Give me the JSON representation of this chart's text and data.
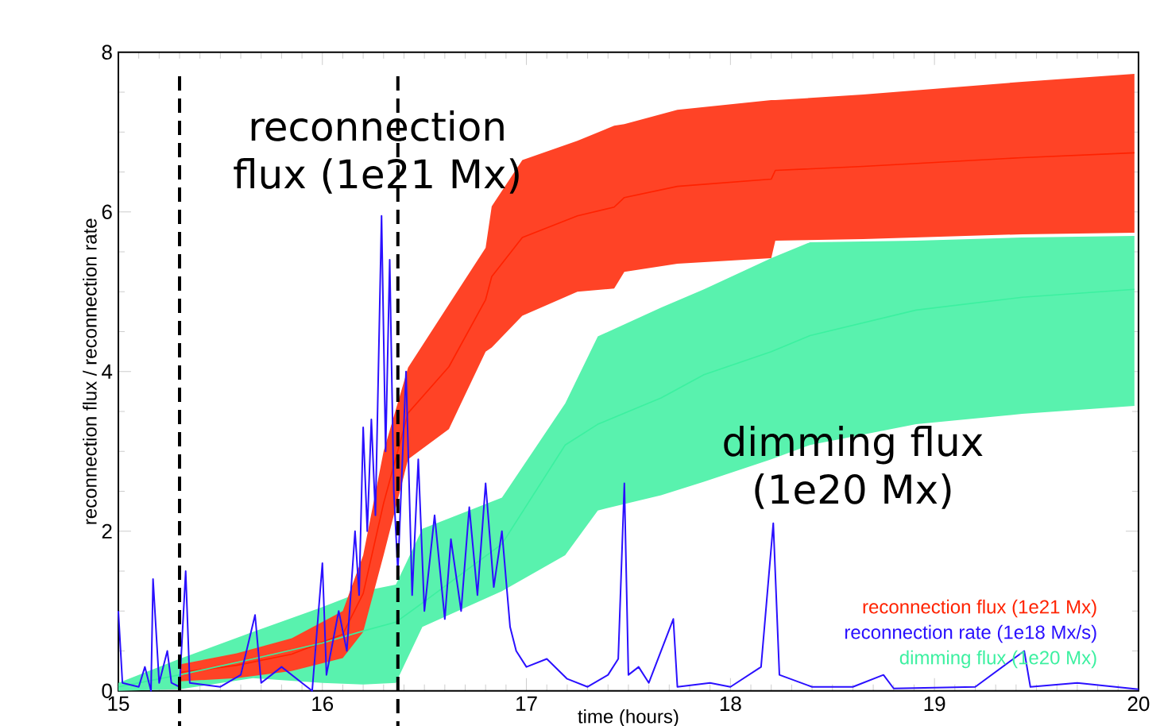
{
  "chart_data": {
    "type": "line",
    "xlabel": "time (hours)",
    "ylabel": "reconnection flux / reconnection rate",
    "xlim": [
      15,
      20
    ],
    "ylim": [
      0,
      8
    ],
    "xticks": [
      15,
      16,
      17,
      18,
      19,
      20
    ],
    "yticks": [
      0,
      2,
      4,
      6,
      8
    ],
    "legend": "bottom right",
    "grid": false,
    "series": [
      {
        "name": "reconnection flux (1e21 Mx)",
        "color": "#ff2200",
        "values": [
          0.23,
          0.32,
          0.46,
          0.71,
          1.22,
          2.35,
          3.48,
          4.06,
          4.9,
          5.19,
          5.68,
          5.95,
          6.06,
          6.18,
          6.32,
          6.41,
          6.52,
          6.57,
          6.68,
          6.74
        ],
        "x": [
          15.3,
          15.58,
          15.85,
          16.1,
          16.2,
          16.3,
          16.42,
          16.62,
          16.8,
          16.83,
          16.98,
          17.25,
          17.43,
          17.48,
          17.74,
          18.2,
          18.22,
          18.65,
          19.43,
          19.98
        ],
        "upper": [
          0.33,
          0.47,
          0.66,
          1.0,
          1.7,
          3.0,
          4.05,
          4.84,
          5.55,
          6.07,
          6.65,
          6.89,
          7.08,
          7.1,
          7.28,
          7.4,
          7.4,
          7.47,
          7.63,
          7.73
        ],
        "lower": [
          0.12,
          0.16,
          0.25,
          0.41,
          0.74,
          1.7,
          2.9,
          3.28,
          4.25,
          4.3,
          4.7,
          5.0,
          5.04,
          5.25,
          5.35,
          5.42,
          5.64,
          5.66,
          5.72,
          5.74
        ]
      },
      {
        "name": "dimming flux (1e20 Mx)",
        "color": "#3cf0a0",
        "x": [
          15.0,
          15.3,
          15.66,
          16.0,
          16.2,
          16.36,
          16.49,
          16.88,
          17.19,
          17.35,
          17.66,
          17.87,
          18.2,
          18.39,
          18.91,
          19.43,
          19.98
        ],
        "values": [
          0.05,
          0.2,
          0.4,
          0.6,
          0.75,
          0.86,
          1.1,
          1.84,
          3.08,
          3.34,
          3.67,
          3.96,
          4.25,
          4.45,
          4.77,
          4.93,
          5.03
        ],
        "upper": [
          0.1,
          0.4,
          0.74,
          1.05,
          1.25,
          1.33,
          2.03,
          2.42,
          3.6,
          4.44,
          4.8,
          5.03,
          5.42,
          5.62,
          5.64,
          5.68,
          5.7
        ],
        "lower": [
          0.0,
          0.02,
          0.16,
          0.1,
          0.08,
          0.1,
          0.8,
          1.25,
          1.7,
          2.26,
          2.45,
          2.62,
          2.9,
          3.08,
          3.34,
          3.47,
          3.57
        ]
      },
      {
        "name": "reconnection rate (1e18 Mx/s)",
        "color": "#2a10ff",
        "x": [
          15.0,
          15.02,
          15.1,
          15.13,
          15.16,
          15.17,
          15.2,
          15.24,
          15.26,
          15.3,
          15.33,
          15.35,
          15.5,
          15.6,
          15.67,
          15.7,
          15.8,
          15.9,
          15.95,
          16.0,
          16.02,
          16.08,
          16.12,
          16.16,
          16.18,
          16.2,
          16.22,
          16.24,
          16.26,
          16.29,
          16.31,
          16.33,
          16.35,
          16.37,
          16.41,
          16.44,
          16.47,
          16.5,
          16.55,
          16.6,
          16.63,
          16.68,
          16.72,
          16.76,
          16.8,
          16.84,
          16.88,
          16.92,
          16.95,
          17.0,
          17.1,
          17.2,
          17.3,
          17.4,
          17.45,
          17.48,
          17.5,
          17.55,
          17.6,
          17.72,
          17.74,
          17.9,
          18.0,
          18.15,
          18.21,
          18.24,
          18.4,
          18.6,
          18.75,
          18.8,
          19.2,
          19.44,
          19.47,
          19.7,
          20.0
        ],
        "values": [
          1.0,
          0.1,
          0.05,
          0.3,
          0.0,
          1.4,
          0.1,
          0.5,
          0.1,
          0.05,
          1.5,
          0.1,
          0.05,
          0.2,
          0.95,
          0.1,
          0.3,
          0.1,
          0.0,
          1.6,
          0.2,
          1.0,
          0.5,
          2.0,
          1.2,
          3.3,
          2.0,
          3.4,
          2.2,
          5.95,
          3.0,
          5.4,
          2.5,
          1.5,
          4.0,
          1.2,
          2.9,
          1.0,
          2.2,
          0.9,
          1.9,
          1.0,
          2.3,
          1.2,
          2.6,
          1.3,
          2.0,
          0.8,
          0.5,
          0.3,
          0.4,
          0.15,
          0.05,
          0.2,
          0.4,
          2.6,
          0.2,
          0.3,
          0.1,
          0.9,
          0.05,
          0.1,
          0.05,
          0.3,
          2.1,
          0.2,
          0.05,
          0.05,
          0.2,
          0.03,
          0.05,
          0.5,
          0.05,
          0.1,
          0.02
        ]
      }
    ],
    "ref_lines": [
      {
        "axis": "x",
        "value": 15.3,
        "color": "#000000",
        "line_style": "dashed"
      },
      {
        "axis": "x",
        "value": 16.37,
        "color": "#000000",
        "line_style": "dashed"
      }
    ],
    "annotations": [
      "reconnection flux (1e21 Mx)",
      "dimming flux (1e20 Mx)"
    ]
  }
}
